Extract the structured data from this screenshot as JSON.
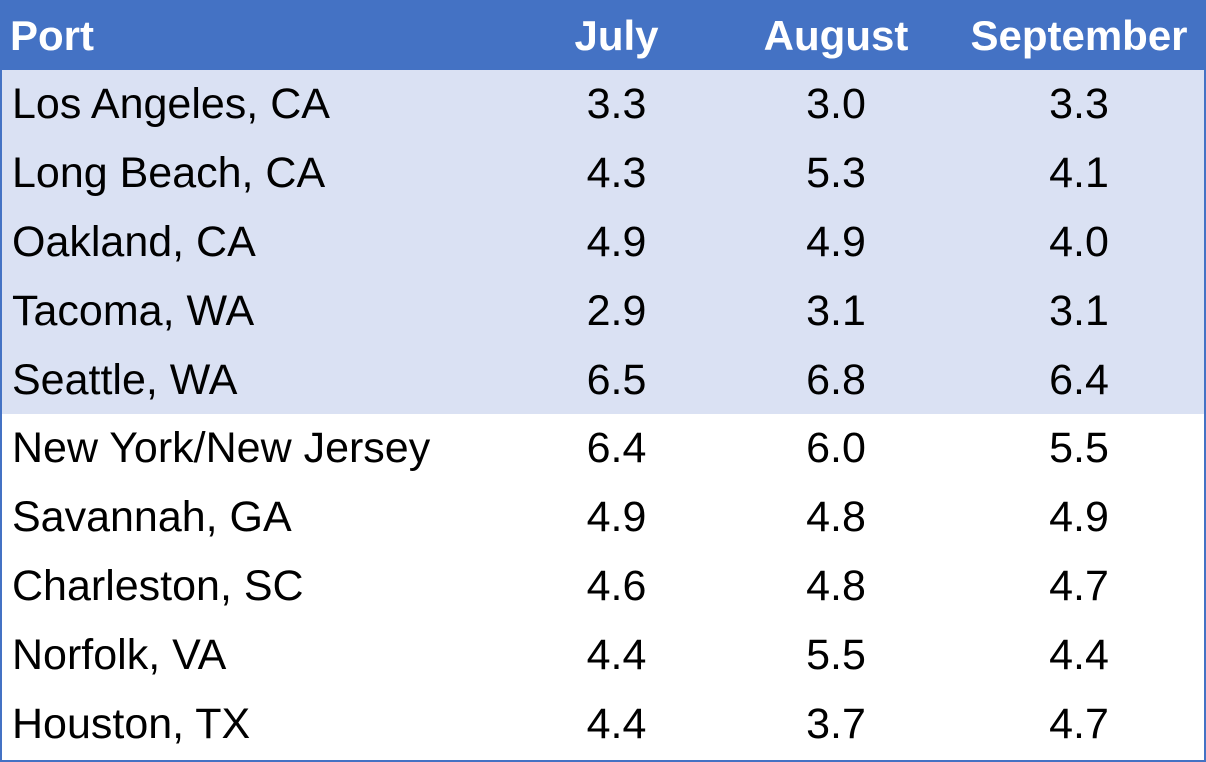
{
  "colors": {
    "header_bg": "#4472c4",
    "header_text": "#ffffff",
    "west_coast_row_bg": "#dae1f3",
    "east_coast_row_bg": "#ffffff",
    "border": "#4472c4"
  },
  "chart_data": {
    "type": "table",
    "columns": [
      "Port",
      "July",
      "August",
      "September"
    ],
    "rows": [
      {
        "port": "Los Angeles, CA",
        "values": [
          "3.3",
          "3.0",
          "3.3"
        ],
        "group": "west"
      },
      {
        "port": "Long Beach, CA",
        "values": [
          "4.3",
          "5.3",
          "4.1"
        ],
        "group": "west"
      },
      {
        "port": "Oakland, CA",
        "values": [
          "4.9",
          "4.9",
          "4.0"
        ],
        "group": "west"
      },
      {
        "port": "Tacoma, WA",
        "values": [
          "2.9",
          "3.1",
          "3.1"
        ],
        "group": "west"
      },
      {
        "port": "Seattle, WA",
        "values": [
          "6.5",
          "6.8",
          "6.4"
        ],
        "group": "west"
      },
      {
        "port": "New York/New Jersey",
        "values": [
          "6.4",
          "6.0",
          "5.5"
        ],
        "group": "east"
      },
      {
        "port": "Savannah, GA",
        "values": [
          "4.9",
          "4.8",
          "4.9"
        ],
        "group": "east"
      },
      {
        "port": "Charleston, SC",
        "values": [
          "4.6",
          "4.8",
          "4.7"
        ],
        "group": "east"
      },
      {
        "port": "Norfolk, VA",
        "values": [
          "4.4",
          "5.5",
          "4.4"
        ],
        "group": "east"
      },
      {
        "port": "Houston, TX",
        "values": [
          "4.4",
          "3.7",
          "4.7"
        ],
        "group": "east"
      }
    ]
  }
}
